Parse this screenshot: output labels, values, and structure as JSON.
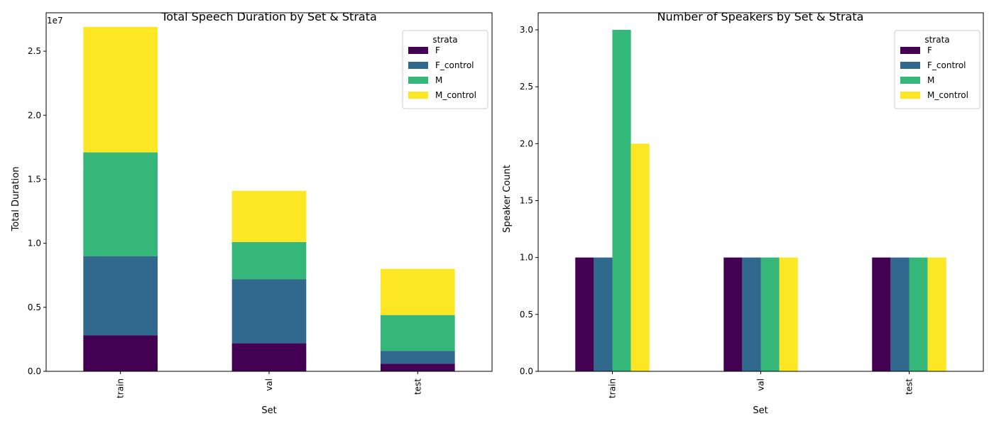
{
  "chart_data": [
    {
      "type": "bar",
      "stacked": true,
      "title": "Total Speech Duration by Set & Strata",
      "xlabel": "Set",
      "ylabel": "Total Duration",
      "offset_label": "1e7",
      "categories": [
        "train",
        "val",
        "test"
      ],
      "ylim": [
        0,
        2.8
      ],
      "yticks": [
        "0.0",
        "0.5",
        "1.0",
        "1.5",
        "2.0",
        "2.5"
      ],
      "tick_values": [
        0,
        0.5,
        1.0,
        1.5,
        2.0,
        2.5
      ],
      "legend_title": "strata",
      "legend_position": "top-right",
      "grid": false,
      "series": [
        {
          "name": "F",
          "color": "#440154",
          "values": [
            0.28,
            0.22,
            0.06
          ]
        },
        {
          "name": "F_control",
          "color": "#31688e",
          "values": [
            0.62,
            0.5,
            0.1
          ]
        },
        {
          "name": "M",
          "color": "#35b779",
          "values": [
            0.81,
            0.29,
            0.28
          ]
        },
        {
          "name": "M_control",
          "color": "#fde725",
          "values": [
            0.98,
            0.4,
            0.36
          ]
        }
      ]
    },
    {
      "type": "bar",
      "stacked": false,
      "title": "Number of Speakers by Set & Strata",
      "xlabel": "Set",
      "ylabel": "Speaker Count",
      "categories": [
        "train",
        "val",
        "test"
      ],
      "ylim": [
        0,
        3.15
      ],
      "yticks": [
        "0.0",
        "0.5",
        "1.0",
        "1.5",
        "2.0",
        "2.5",
        "3.0"
      ],
      "tick_values": [
        0,
        0.5,
        1.0,
        1.5,
        2.0,
        2.5,
        3.0
      ],
      "legend_title": "strata",
      "legend_position": "top-right",
      "grid": false,
      "series": [
        {
          "name": "F",
          "color": "#440154",
          "values": [
            1,
            1,
            1
          ]
        },
        {
          "name": "F_control",
          "color": "#31688e",
          "values": [
            1,
            1,
            1
          ]
        },
        {
          "name": "M",
          "color": "#35b779",
          "values": [
            3,
            1,
            1
          ]
        },
        {
          "name": "M_control",
          "color": "#fde725",
          "values": [
            2,
            1,
            1
          ]
        }
      ]
    }
  ]
}
